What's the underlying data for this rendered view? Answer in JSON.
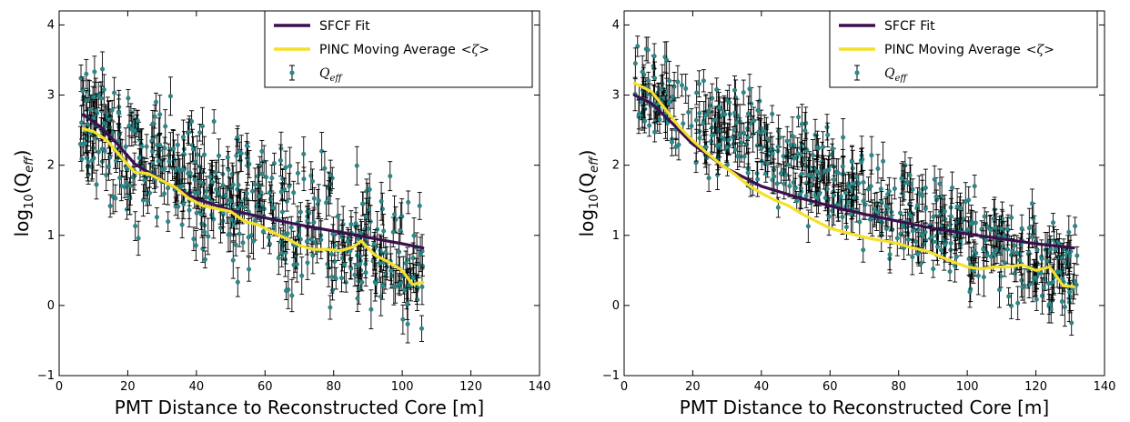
{
  "chart_data": [
    {
      "type": "scatter",
      "panel": "left",
      "xlabel": "PMT Distance to Reconstructed Core [m]",
      "ylabel_base": "log",
      "ylabel_sub": "10",
      "ylabel_paren_open": "(Q",
      "ylabel_sub2": "eff",
      "ylabel_paren_close": ")",
      "xlim": [
        0,
        140
      ],
      "ylim": [
        -1,
        4.2
      ],
      "xticks": [
        0,
        20,
        40,
        60,
        80,
        100,
        120,
        140
      ],
      "yticks": [
        -1,
        0,
        1,
        2,
        3,
        4
      ],
      "xtick_labels": [
        "0",
        "20",
        "40",
        "60",
        "80",
        "100",
        "120",
        "140"
      ],
      "ytick_labels": [
        "−1",
        "0",
        "1",
        "2",
        "3",
        "4"
      ],
      "legend": {
        "position": "top-right",
        "entries": [
          {
            "label": "SFCF Fit",
            "kind": "line",
            "color": "#3b0f4f"
          },
          {
            "label": "PINC Moving Average",
            "math": "<ζ>",
            "kind": "line",
            "color": "#f5e12a"
          },
          {
            "label": "Q",
            "sub": "eff",
            "kind": "errorbar",
            "color": "#2a8a8a"
          }
        ]
      },
      "series": [
        {
          "name": "SFCF Fit",
          "color": "#3b0f4f",
          "points": [
            [
              7,
              2.72
            ],
            [
              12,
              2.55
            ],
            [
              17,
              2.3
            ],
            [
              22,
              2.02
            ],
            [
              30,
              1.78
            ],
            [
              40,
              1.52
            ],
            [
              50,
              1.36
            ],
            [
              60,
              1.25
            ],
            [
              70,
              1.15
            ],
            [
              80,
              1.06
            ],
            [
              90,
              0.97
            ],
            [
              100,
              0.88
            ],
            [
              106,
              0.82
            ]
          ]
        },
        {
          "name": "PINC Moving Average",
          "color": "#f5e12a",
          "points": [
            [
              7,
              2.52
            ],
            [
              10,
              2.48
            ],
            [
              14,
              2.35
            ],
            [
              18,
              2.12
            ],
            [
              22,
              1.9
            ],
            [
              26,
              1.88
            ],
            [
              30,
              1.78
            ],
            [
              34,
              1.68
            ],
            [
              38,
              1.52
            ],
            [
              42,
              1.42
            ],
            [
              46,
              1.38
            ],
            [
              50,
              1.34
            ],
            [
              54,
              1.2
            ],
            [
              58,
              1.15
            ],
            [
              62,
              1.05
            ],
            [
              66,
              0.96
            ],
            [
              70,
              0.86
            ],
            [
              74,
              0.8
            ],
            [
              78,
              0.8
            ],
            [
              82,
              0.78
            ],
            [
              86,
              0.84
            ],
            [
              88,
              0.92
            ],
            [
              92,
              0.72
            ],
            [
              96,
              0.62
            ],
            [
              100,
              0.5
            ],
            [
              103,
              0.3
            ],
            [
              106,
              0.33
            ]
          ]
        },
        {
          "name": "Q_eff",
          "color": "#2a8a8a",
          "x_range": [
            6,
            106
          ],
          "y_trend": [
            2.6,
            0.6
          ],
          "scatter": 0.45,
          "count": 560,
          "seed": 7
        }
      ]
    },
    {
      "type": "scatter",
      "panel": "right",
      "xlabel": "PMT Distance to Reconstructed Core [m]",
      "ylabel_base": "log",
      "ylabel_sub": "10",
      "ylabel_paren_open": "(Q",
      "ylabel_sub2": "eff",
      "ylabel_paren_close": ")",
      "xlim": [
        0,
        140
      ],
      "ylim": [
        -1,
        4.2
      ],
      "xticks": [
        0,
        20,
        40,
        60,
        80,
        100,
        120,
        140
      ],
      "yticks": [
        -1,
        0,
        1,
        2,
        3,
        4
      ],
      "xtick_labels": [
        "0",
        "20",
        "40",
        "60",
        "80",
        "100",
        "120",
        "140"
      ],
      "ytick_labels": [
        "−1",
        "0",
        "1",
        "2",
        "3",
        "4"
      ],
      "legend": {
        "position": "top-right",
        "entries": [
          {
            "label": "SFCF Fit",
            "kind": "line",
            "color": "#3b0f4f"
          },
          {
            "label": "PINC Moving Average",
            "math": "<ζ>",
            "kind": "line",
            "color": "#f5e12a"
          },
          {
            "label": "Q",
            "sub": "eff",
            "kind": "errorbar",
            "color": "#2a8a8a"
          }
        ]
      },
      "series": [
        {
          "name": "SFCF Fit",
          "color": "#3b0f4f",
          "points": [
            [
              3,
              3.0
            ],
            [
              8,
              2.88
            ],
            [
              14,
              2.6
            ],
            [
              20,
              2.3
            ],
            [
              30,
              1.95
            ],
            [
              40,
              1.7
            ],
            [
              50,
              1.55
            ],
            [
              60,
              1.42
            ],
            [
              70,
              1.3
            ],
            [
              80,
              1.2
            ],
            [
              90,
              1.1
            ],
            [
              100,
              1.02
            ],
            [
              110,
              0.95
            ],
            [
              120,
              0.88
            ],
            [
              131,
              0.82
            ]
          ]
        },
        {
          "name": "PINC Moving Average",
          "color": "#f5e12a",
          "points": [
            [
              3,
              3.17
            ],
            [
              8,
              3.05
            ],
            [
              12,
              2.8
            ],
            [
              16,
              2.55
            ],
            [
              20,
              2.35
            ],
            [
              24,
              2.18
            ],
            [
              28,
              2.02
            ],
            [
              32,
              1.88
            ],
            [
              36,
              1.72
            ],
            [
              40,
              1.6
            ],
            [
              44,
              1.5
            ],
            [
              48,
              1.42
            ],
            [
              52,
              1.3
            ],
            [
              56,
              1.2
            ],
            [
              60,
              1.1
            ],
            [
              64,
              1.05
            ],
            [
              68,
              1.0
            ],
            [
              72,
              0.95
            ],
            [
              76,
              0.92
            ],
            [
              80,
              0.88
            ],
            [
              84,
              0.82
            ],
            [
              88,
              0.78
            ],
            [
              92,
              0.7
            ],
            [
              96,
              0.62
            ],
            [
              100,
              0.55
            ],
            [
              104,
              0.52
            ],
            [
              108,
              0.55
            ],
            [
              112,
              0.55
            ],
            [
              116,
              0.58
            ],
            [
              120,
              0.5
            ],
            [
              124,
              0.55
            ],
            [
              128,
              0.28
            ],
            [
              131,
              0.27
            ]
          ]
        },
        {
          "name": "Q_eff",
          "color": "#2a8a8a",
          "x_range": [
            3,
            132
          ],
          "y_trend": [
            3.2,
            0.4
          ],
          "scatter": 0.32,
          "count": 620,
          "seed": 13
        }
      ]
    }
  ]
}
